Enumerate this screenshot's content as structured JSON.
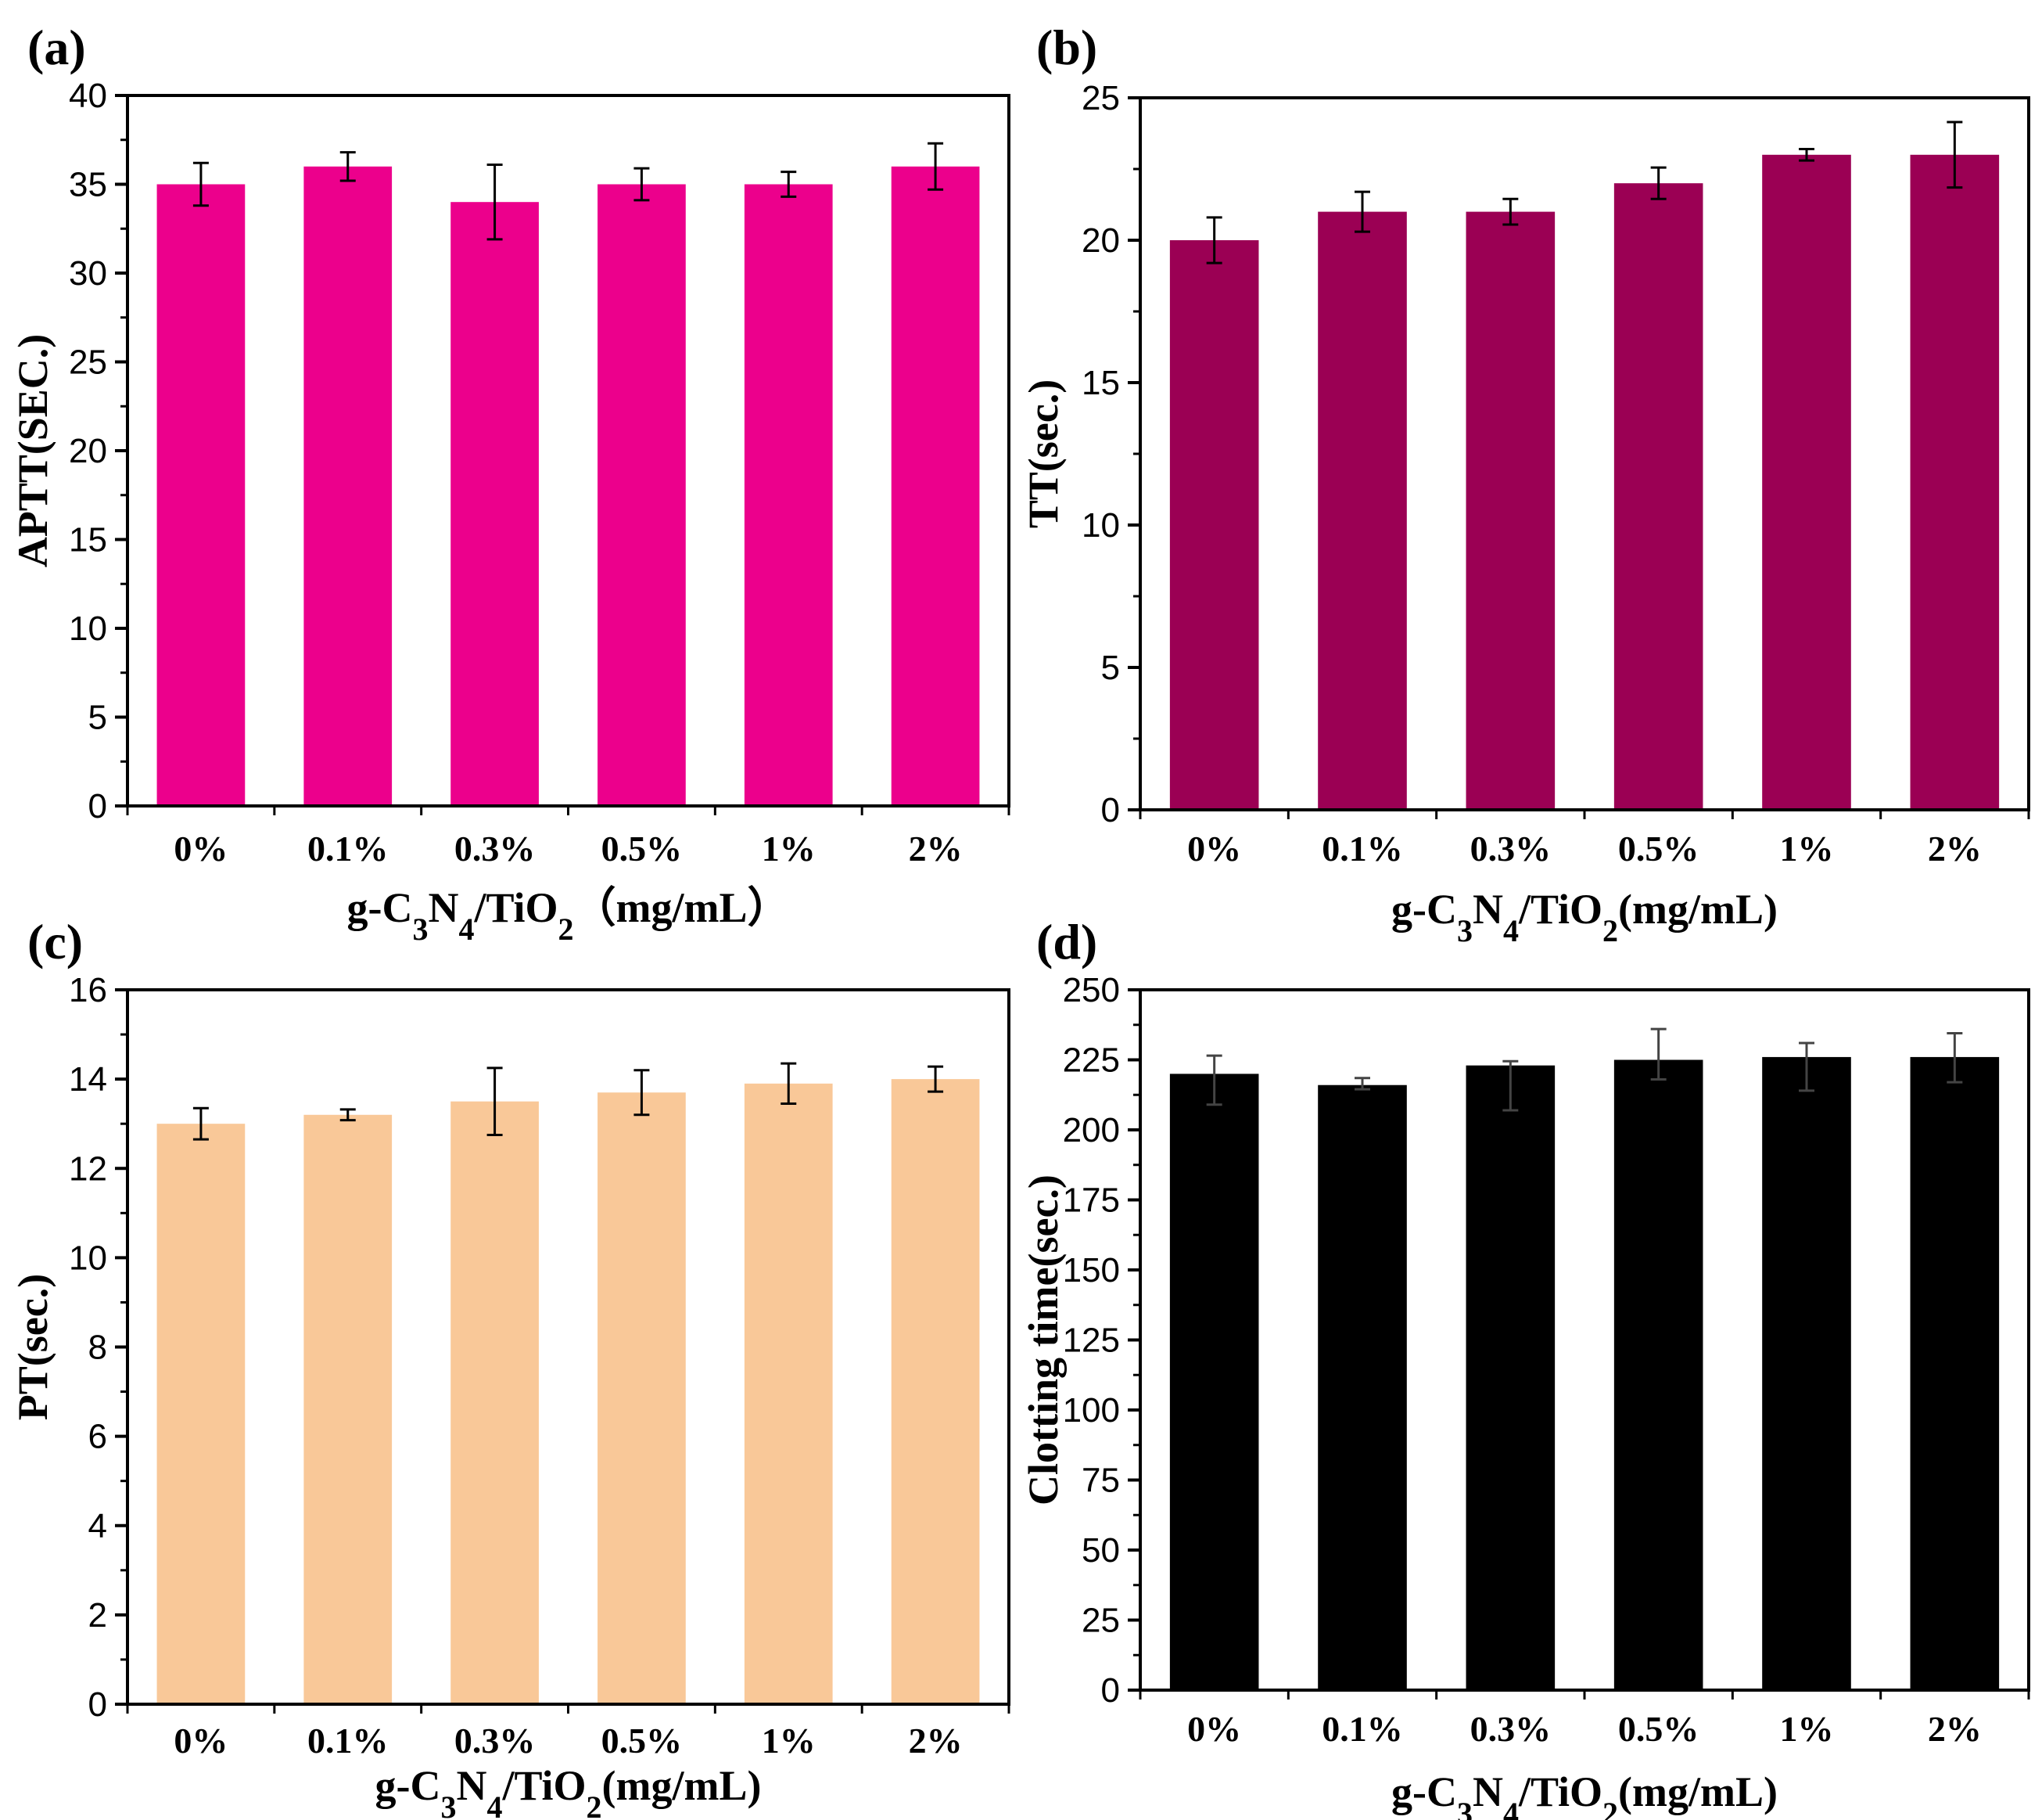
{
  "chart_data": [
    {
      "panel_label": "(a)",
      "type": "bar",
      "categories": [
        "0%",
        "0.1%",
        "0.3%",
        "0.5%",
        "1%",
        "2%"
      ],
      "values": [
        35,
        36,
        34,
        35,
        35,
        36
      ],
      "errors": [
        1.2,
        0.8,
        2.1,
        0.9,
        0.7,
        1.3
      ],
      "ylabel": "APTT(SEC.)",
      "xlabel_parts": [
        "g-C",
        "3",
        "N",
        "4",
        "/TiO",
        "2",
        "（mg/mL）"
      ],
      "ylim": [
        0,
        40
      ],
      "ticks": [
        0,
        5,
        10,
        15,
        20,
        25,
        30,
        35,
        40
      ],
      "tick_labels": [
        "0",
        "5",
        "10",
        "15",
        "20",
        "25",
        "30",
        "35",
        "40"
      ],
      "color": "#ec008c"
    },
    {
      "panel_label": "(b)",
      "type": "bar",
      "categories": [
        "0%",
        "0.1%",
        "0.3%",
        "0.5%",
        "1%",
        "2%"
      ],
      "values": [
        20,
        21,
        21,
        22,
        23,
        23
      ],
      "errors": [
        0.8,
        0.7,
        0.45,
        0.55,
        0.2,
        1.15
      ],
      "ylabel": "TT(sec.)",
      "xlabel_parts": [
        "g-C",
        "3",
        "N",
        "4",
        "/TiO",
        "2",
        "(mg/mL)"
      ],
      "ylim": [
        0,
        25
      ],
      "ticks": [
        0,
        5,
        10,
        15,
        20,
        25
      ],
      "tick_labels": [
        "0",
        "5",
        "10",
        "15",
        "20",
        "25"
      ],
      "color": "#9b0054"
    },
    {
      "panel_label": "(c)",
      "type": "bar",
      "categories": [
        "0%",
        "0.1%",
        "0.3%",
        "0.5%",
        "1%",
        "2%"
      ],
      "values": [
        13.0,
        13.2,
        13.5,
        13.7,
        13.9,
        14.0
      ],
      "errors": [
        0.35,
        0.12,
        0.75,
        0.5,
        0.45,
        0.28
      ],
      "ylabel": "PT(sec.)",
      "xlabel_parts": [
        "g-C",
        "3",
        "N",
        "4",
        "/TiO",
        "2",
        "(mg/mL)"
      ],
      "ylim": [
        0,
        16
      ],
      "ticks": [
        0,
        2,
        4,
        6,
        8,
        10,
        12,
        14,
        16
      ],
      "tick_labels": [
        "0",
        "2",
        "4",
        "6",
        "8",
        "10",
        "12",
        "14",
        "16"
      ],
      "color": "#f9c898"
    },
    {
      "panel_label": "(d)",
      "type": "bar",
      "categories": [
        "0%",
        "0.1%",
        "0.3%",
        "0.5%",
        "1%",
        "2%"
      ],
      "values": [
        220,
        216,
        223,
        225,
        226,
        226
      ],
      "errors": [
        6.5,
        2.5,
        1.5,
        11,
        5,
        8.5
      ],
      "errors_low": [
        11,
        1.5,
        16,
        7,
        12,
        9
      ],
      "ylabel": "Clotting time(sec.)",
      "xlabel_parts": [
        "g-C",
        "3",
        "N",
        "4",
        "/TiO",
        "2",
        "(mg/mL)"
      ],
      "ylim": [
        0,
        250
      ],
      "ticks": [
        0,
        25,
        50,
        75,
        100,
        125,
        150,
        175,
        200,
        225,
        250
      ],
      "tick_labels": [
        "0",
        "25",
        "50",
        "75",
        "100",
        "125",
        "150",
        "175",
        "200",
        "225",
        "250"
      ],
      "color": "#000000"
    }
  ]
}
